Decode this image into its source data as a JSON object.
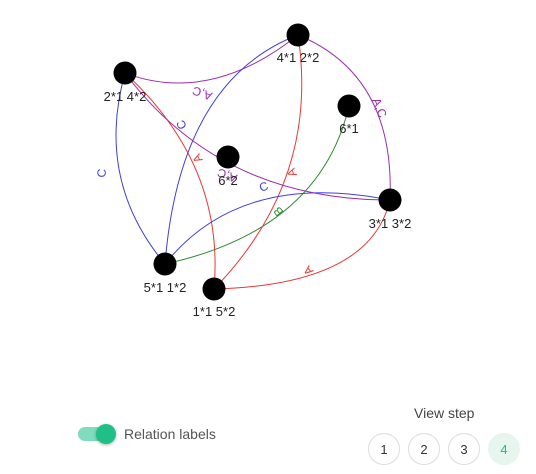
{
  "graph": {
    "nodes": [
      {
        "id": "n1",
        "label": "4*1 2*2"
      },
      {
        "id": "n2",
        "label": "2*1 4*2"
      },
      {
        "id": "n3",
        "label": "6*1"
      },
      {
        "id": "n4",
        "label": "6*2"
      },
      {
        "id": "n5",
        "label": "3*1 3*2"
      },
      {
        "id": "n6",
        "label": "5*1 1*2"
      },
      {
        "id": "n7",
        "label": "1*1 5*2"
      }
    ],
    "edges": [
      {
        "id": "e1",
        "label": "A,C",
        "color": "#9b2fae"
      },
      {
        "id": "e2",
        "label": "A,C",
        "color": "#9b2fae"
      },
      {
        "id": "e3",
        "label": "A",
        "color": "#e53935"
      },
      {
        "id": "e4",
        "label": "C",
        "color": "#3f3fe0"
      },
      {
        "id": "e5",
        "label": "C",
        "color": "#3f3fe0"
      },
      {
        "id": "e6",
        "label": "B",
        "color": "#2e8b2e"
      },
      {
        "id": "e7",
        "label": "A",
        "color": "#e53935"
      },
      {
        "id": "e8",
        "label": "C",
        "color": "#3f3fe0"
      },
      {
        "id": "e9",
        "label": "A",
        "color": "#e53935"
      },
      {
        "id": "e10",
        "label": "A,C",
        "color": "#9b2fae"
      }
    ]
  },
  "controls": {
    "toggle_label": "Relation labels",
    "toggle_on": true,
    "view_step_title": "View step",
    "steps": [
      "1",
      "2",
      "3",
      "4"
    ],
    "active_step": "4",
    "accent": "#1fbf86"
  }
}
